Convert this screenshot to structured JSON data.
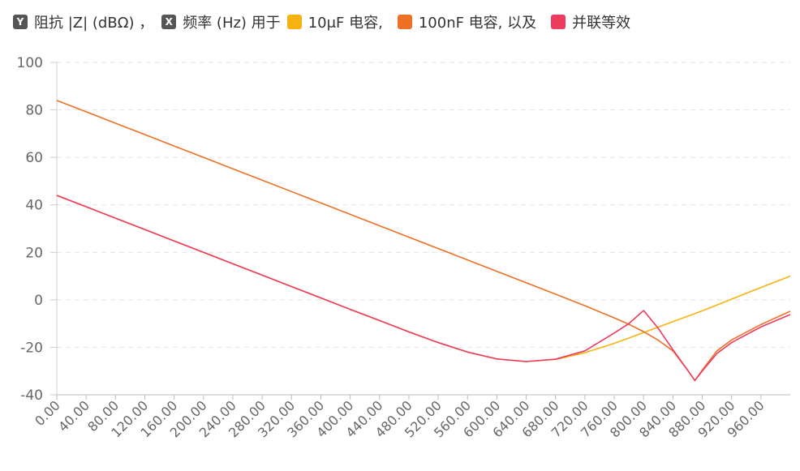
{
  "chart_data": {
    "type": "line",
    "axis_badges": {
      "y": "Y",
      "x": "X"
    },
    "ylabel": "阻抗 |Z| (dBΩ) ，",
    "xlabel": "频率 (Hz) 用于",
    "x": [
      0,
      40,
      80,
      120,
      160,
      200,
      240,
      280,
      320,
      360,
      400,
      440,
      480,
      520,
      560,
      600,
      640,
      680,
      720,
      760,
      780,
      800,
      820,
      840,
      860,
      870,
      880,
      900,
      920,
      960,
      1000
    ],
    "series": [
      {
        "name": "10μF 电容,",
        "color": "#f6b30f",
        "values": [
          44,
          39.2,
          34.4,
          29.6,
          24.8,
          20,
          15.2,
          10.4,
          5.6,
          0.8,
          -4,
          -8.7,
          -13.5,
          -18,
          -22,
          -24.9,
          -26,
          -25.1,
          -22.3,
          -18.3,
          -16.1,
          -13.8,
          -11.5,
          -9.2,
          -6.9,
          -5.8,
          -4.6,
          -2.2,
          0.3,
          5.2,
          10
        ]
      },
      {
        "name": "100nF 电容, 以及",
        "color": "#ef6f24",
        "values": [
          84,
          79.2,
          74.4,
          69.6,
          64.8,
          60,
          55.2,
          50.4,
          45.6,
          40.8,
          36,
          31.2,
          26.4,
          21.6,
          16.8,
          12,
          7.2,
          2.4,
          -2.5,
          -7.6,
          -10.3,
          -13.4,
          -17,
          -21.5,
          -29.6,
          -34,
          -29.6,
          -21.5,
          -16.9,
          -10.4,
          -4.8
        ]
      },
      {
        "name": "并联等效",
        "color": "#ee3a5e",
        "values": [
          44,
          39.2,
          34.4,
          29.6,
          24.8,
          20,
          15.2,
          10.4,
          5.6,
          0.8,
          -4,
          -8.7,
          -13.5,
          -18,
          -22,
          -24.9,
          -26,
          -25,
          -21.5,
          -14,
          -10,
          -4.5,
          -12,
          -21,
          -29.6,
          -34,
          -30,
          -22.6,
          -18,
          -11.4,
          -6.2
        ]
      }
    ],
    "xlim": [
      0,
      1000
    ],
    "ylim": [
      -40,
      100
    ],
    "yticks": [
      -40,
      -20,
      0,
      20,
      40,
      60,
      80,
      100
    ],
    "xticks": [
      {
        "value": 0,
        "label": "0.00"
      },
      {
        "value": 40,
        "label": "40.00"
      },
      {
        "value": 80,
        "label": "80.00"
      },
      {
        "value": 120,
        "label": "120.00"
      },
      {
        "value": 160,
        "label": "160.00"
      },
      {
        "value": 200,
        "label": "200.00"
      },
      {
        "value": 240,
        "label": "240.00"
      },
      {
        "value": 280,
        "label": "280.00"
      },
      {
        "value": 320,
        "label": "320.00"
      },
      {
        "value": 360,
        "label": "360.00"
      },
      {
        "value": 400,
        "label": "400.00"
      },
      {
        "value": 440,
        "label": "440.00"
      },
      {
        "value": 480,
        "label": "480.00"
      },
      {
        "value": 520,
        "label": "520.00"
      },
      {
        "value": 560,
        "label": "560.00"
      },
      {
        "value": 600,
        "label": "600.00"
      },
      {
        "value": 640,
        "label": "640.00"
      },
      {
        "value": 680,
        "label": "680.00"
      },
      {
        "value": 720,
        "label": "720.00"
      },
      {
        "value": 760,
        "label": "760.00"
      },
      {
        "value": 800,
        "label": "800.00"
      },
      {
        "value": 840,
        "label": "840.00"
      },
      {
        "value": 880,
        "label": "880.00"
      },
      {
        "value": 920,
        "label": "920.00"
      },
      {
        "value": 960,
        "label": "960.00"
      }
    ],
    "grid": true
  }
}
